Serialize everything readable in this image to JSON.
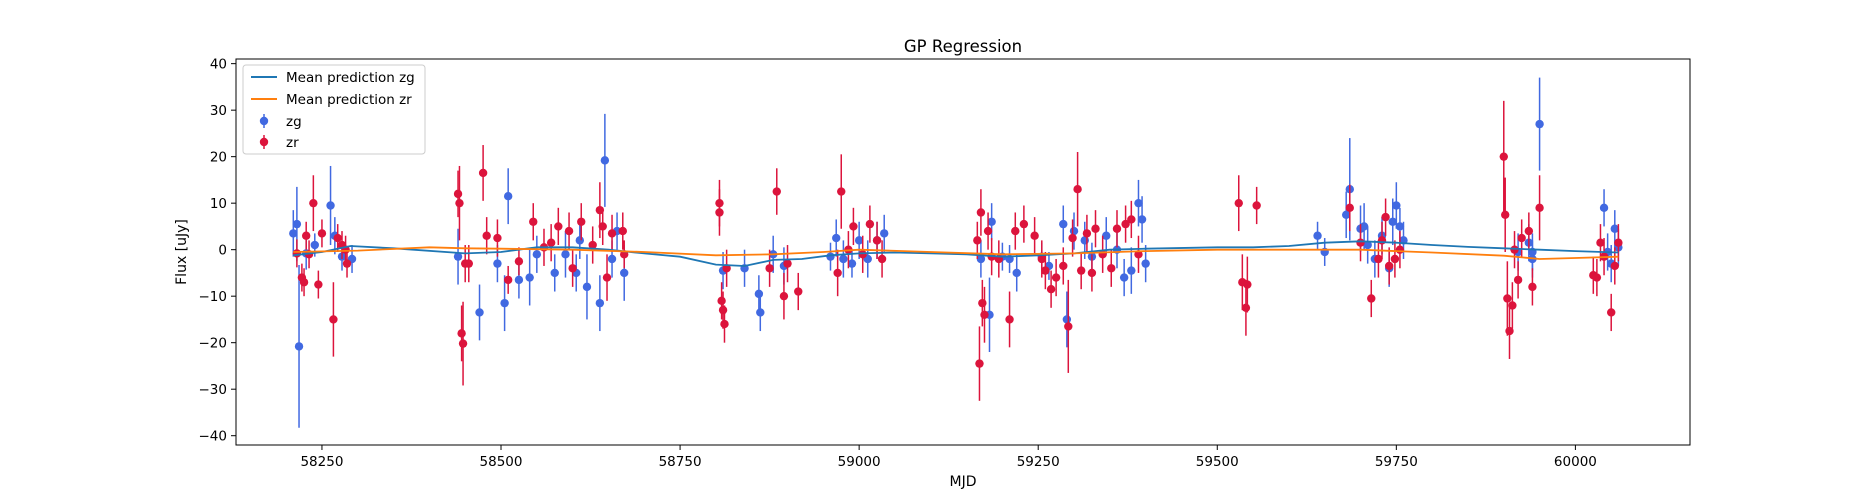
{
  "chart_data": {
    "type": "scatter",
    "title": "GP Regression",
    "xlabel": "MJD",
    "ylabel": "Flux [uJy]",
    "xlim": [
      58130,
      60160
    ],
    "ylim": [
      -42,
      41
    ],
    "xticks": [
      58250,
      58500,
      58750,
      59000,
      59250,
      59500,
      59750,
      60000
    ],
    "yticks": [
      -40,
      -30,
      -20,
      -10,
      0,
      10,
      20,
      30,
      40
    ],
    "grid": false,
    "legend_position": "upper-left",
    "lines": [
      {
        "name": "Mean prediction zg",
        "color": "#1f77b4",
        "x": [
          58210,
          58250,
          58290,
          58350,
          58450,
          58500,
          58550,
          58600,
          58650,
          58700,
          58750,
          58800,
          58840,
          58880,
          58920,
          58960,
          59000,
          59050,
          59100,
          59150,
          59200,
          59250,
          59300,
          59350,
          59400,
          59500,
          59550,
          59600,
          59650,
          59700,
          59750,
          59800,
          59850,
          59900,
          59950,
          60000,
          60060
        ],
        "y": [
          -1.2,
          -0.5,
          0.8,
          0.3,
          -0.8,
          -0.5,
          0.5,
          0.5,
          0.0,
          -0.8,
          -1.5,
          -3.2,
          -3.5,
          -2.2,
          -2.0,
          -1.2,
          -0.8,
          -0.6,
          -0.8,
          -1.0,
          -1.5,
          -1.2,
          -0.8,
          0.0,
          0.2,
          0.5,
          0.5,
          0.8,
          1.5,
          1.8,
          1.5,
          1.0,
          0.6,
          0.3,
          0.0,
          -0.3,
          -0.6
        ]
      },
      {
        "name": "Mean prediction zr",
        "color": "#ff7f0e",
        "x": [
          58210,
          58300,
          58400,
          58450,
          58500,
          58600,
          58700,
          58800,
          58880,
          58950,
          59000,
          59100,
          59200,
          59300,
          59400,
          59500,
          59600,
          59700,
          59800,
          59900,
          59950,
          60000,
          60060
        ],
        "y": [
          -0.5,
          -0.2,
          0.5,
          0.3,
          0.2,
          0.0,
          -0.5,
          -1.2,
          -1.0,
          -0.5,
          0.0,
          -0.5,
          -1.0,
          -0.8,
          -0.3,
          0.0,
          0.0,
          0.0,
          -0.6,
          -1.3,
          -2.0,
          -1.8,
          -1.5
        ]
      }
    ],
    "series": [
      {
        "name": "zg",
        "color": "#4169e1",
        "points": [
          [
            58210,
            3.5,
            5
          ],
          [
            58215,
            5.5,
            8
          ],
          [
            58218,
            -20.8,
            17.5
          ],
          [
            58228,
            -0.8,
            3.5
          ],
          [
            58240,
            1.0,
            2.5
          ],
          [
            58262,
            9.5,
            8.5
          ],
          [
            58268,
            3.0,
            4
          ],
          [
            58278,
            -1.5,
            3
          ],
          [
            58292,
            -2.0,
            3
          ],
          [
            58440,
            -1.5,
            6
          ],
          [
            58470,
            -13.5,
            6
          ],
          [
            58495,
            -3.0,
            4
          ],
          [
            58505,
            -11.5,
            6
          ],
          [
            58510,
            11.5,
            6
          ],
          [
            58525,
            -6.5,
            4
          ],
          [
            58540,
            -6.0,
            6
          ],
          [
            58550,
            -1.0,
            4
          ],
          [
            58575,
            -5.0,
            4
          ],
          [
            58590,
            -1.0,
            5
          ],
          [
            58605,
            -5.0,
            4
          ],
          [
            58610,
            2.0,
            4
          ],
          [
            58620,
            -8.0,
            7
          ],
          [
            58638,
            -11.5,
            6
          ],
          [
            58645,
            19.2,
            10
          ],
          [
            58655,
            -2.0,
            4
          ],
          [
            58662,
            4.0,
            4
          ],
          [
            58672,
            -5.0,
            6
          ],
          [
            58810,
            -4.5,
            4
          ],
          [
            58840,
            -4.0,
            4
          ],
          [
            58860,
            -9.5,
            4
          ],
          [
            58862,
            -13.5,
            4
          ],
          [
            58880,
            -1.0,
            4
          ],
          [
            58895,
            -3.5,
            4
          ],
          [
            58960,
            -1.5,
            3
          ],
          [
            58968,
            2.5,
            4
          ],
          [
            58978,
            -2.0,
            4
          ],
          [
            58990,
            -3.0,
            3
          ],
          [
            59000,
            2.0,
            4
          ],
          [
            59012,
            -2.0,
            4
          ],
          [
            59025,
            2.0,
            4
          ],
          [
            59035,
            3.5,
            4
          ],
          [
            59170,
            -2.0,
            4
          ],
          [
            59182,
            -14.0,
            8
          ],
          [
            59185,
            6.0,
            4
          ],
          [
            59200,
            -1.5,
            3
          ],
          [
            59210,
            -2.0,
            3
          ],
          [
            59220,
            -5.0,
            4
          ],
          [
            59255,
            -1.5,
            3
          ],
          [
            59265,
            -3.5,
            3
          ],
          [
            59285,
            5.5,
            4
          ],
          [
            59290,
            -15.0,
            6
          ],
          [
            59300,
            4.0,
            4
          ],
          [
            59315,
            2.0,
            4
          ],
          [
            59325,
            -1.5,
            3
          ],
          [
            59345,
            3.0,
            4
          ],
          [
            59360,
            0.0,
            4
          ],
          [
            59370,
            -6.0,
            4
          ],
          [
            59380,
            -4.5,
            5
          ],
          [
            59390,
            10.0,
            5
          ],
          [
            59395,
            6.5,
            5
          ],
          [
            59400,
            -3.0,
            4
          ],
          [
            59640,
            3.0,
            3
          ],
          [
            59650,
            -0.5,
            3
          ],
          [
            59680,
            7.5,
            5
          ],
          [
            59685,
            13.0,
            11
          ],
          [
            59700,
            4.5,
            5
          ],
          [
            59705,
            5.0,
            5
          ],
          [
            59710,
            1.0,
            4
          ],
          [
            59720,
            -2.0,
            4
          ],
          [
            59730,
            3.0,
            4
          ],
          [
            59740,
            -4.0,
            4
          ],
          [
            59745,
            6.0,
            5
          ],
          [
            59750,
            9.5,
            5
          ],
          [
            59755,
            5.0,
            4
          ],
          [
            59760,
            2.0,
            4
          ],
          [
            59940,
            -0.5,
            4
          ],
          [
            59950,
            27.0,
            10
          ],
          [
            59940,
            -2.0,
            4
          ],
          [
            59920,
            -0.5,
            4
          ],
          [
            59935,
            1.5,
            4
          ],
          [
            60040,
            9.0,
            4
          ],
          [
            60045,
            -0.5,
            4
          ],
          [
            60050,
            -3.0,
            4
          ],
          [
            60055,
            4.5,
            4
          ],
          [
            60060,
            0.5,
            4
          ]
        ]
      },
      {
        "name": "zr",
        "color": "#dc143c",
        "points": [
          [
            58215,
            -0.8,
            3
          ],
          [
            58222,
            -6.0,
            3
          ],
          [
            58225,
            -7.0,
            3
          ],
          [
            58228,
            3.0,
            3
          ],
          [
            58232,
            -1.0,
            3
          ],
          [
            58238,
            10.0,
            6
          ],
          [
            58245,
            -7.5,
            3
          ],
          [
            58250,
            3.5,
            3
          ],
          [
            58266,
            -15.0,
            8
          ],
          [
            58272,
            2.5,
            3
          ],
          [
            58278,
            1.0,
            3
          ],
          [
            58283,
            0.0,
            3
          ],
          [
            58285,
            -3.0,
            3
          ],
          [
            58440,
            12.0,
            5
          ],
          [
            58442,
            10.0,
            8
          ],
          [
            58445,
            -18.0,
            6
          ],
          [
            58447,
            -20.2,
            9
          ],
          [
            58450,
            -3.0,
            4
          ],
          [
            58455,
            -3.0,
            4
          ],
          [
            58475,
            16.5,
            6
          ],
          [
            58480,
            3.0,
            4
          ],
          [
            58495,
            2.5,
            4
          ],
          [
            58510,
            -6.5,
            3
          ],
          [
            58525,
            -2.5,
            3
          ],
          [
            58545,
            6.0,
            4
          ],
          [
            58560,
            0.5,
            4
          ],
          [
            58570,
            1.5,
            4
          ],
          [
            58580,
            5.0,
            4
          ],
          [
            58595,
            4.0,
            4
          ],
          [
            58600,
            -4.0,
            4
          ],
          [
            58612,
            6.0,
            4
          ],
          [
            58628,
            1.0,
            4
          ],
          [
            58638,
            8.5,
            6
          ],
          [
            58642,
            5.0,
            4
          ],
          [
            58648,
            -6.0,
            5
          ],
          [
            58655,
            3.5,
            4
          ],
          [
            58670,
            4.0,
            4
          ],
          [
            58672,
            -1.0,
            3
          ],
          [
            58805,
            10.0,
            5
          ],
          [
            58805,
            8.0,
            5
          ],
          [
            58808,
            -11.0,
            4
          ],
          [
            58810,
            -13.0,
            4
          ],
          [
            58812,
            -16.0,
            4
          ],
          [
            58815,
            -4.0,
            4
          ],
          [
            58875,
            -4.0,
            4
          ],
          [
            58885,
            12.5,
            5
          ],
          [
            58895,
            -10.0,
            5
          ],
          [
            58900,
            -3.0,
            4
          ],
          [
            58915,
            -9.0,
            4
          ],
          [
            58970,
            -5.0,
            5
          ],
          [
            58975,
            12.5,
            8
          ],
          [
            58985,
            0.0,
            4
          ],
          [
            58992,
            5.0,
            4
          ],
          [
            59005,
            -1.0,
            4
          ],
          [
            59015,
            5.5,
            4
          ],
          [
            59025,
            2.0,
            4
          ],
          [
            59032,
            -2.0,
            4
          ],
          [
            59165,
            2.0,
            4
          ],
          [
            59168,
            -24.5,
            8
          ],
          [
            59170,
            8.0,
            5
          ],
          [
            59172,
            -11.5,
            5
          ],
          [
            59175,
            -14.0,
            6
          ],
          [
            59180,
            4.0,
            4
          ],
          [
            59185,
            -1.5,
            4
          ],
          [
            59195,
            -2.0,
            4
          ],
          [
            59210,
            -15.0,
            6
          ],
          [
            59218,
            4.0,
            4
          ],
          [
            59230,
            5.5,
            4
          ],
          [
            59245,
            3.0,
            4
          ],
          [
            59255,
            -2.0,
            4
          ],
          [
            59260,
            -4.5,
            4
          ],
          [
            59268,
            -8.5,
            4
          ],
          [
            59275,
            -6.0,
            4
          ],
          [
            59285,
            -3.5,
            4
          ],
          [
            59292,
            -16.5,
            10
          ],
          [
            59298,
            2.5,
            4
          ],
          [
            59305,
            13.0,
            8
          ],
          [
            59310,
            -4.5,
            4
          ],
          [
            59318,
            3.5,
            4
          ],
          [
            59325,
            -5.0,
            4
          ],
          [
            59330,
            4.5,
            4
          ],
          [
            59340,
            -1.0,
            4
          ],
          [
            59352,
            -4.0,
            4
          ],
          [
            59360,
            4.5,
            4
          ],
          [
            59372,
            5.5,
            4
          ],
          [
            59380,
            6.5,
            4
          ],
          [
            59390,
            -1.0,
            4
          ],
          [
            59530,
            10.0,
            6
          ],
          [
            59535,
            -7.0,
            6
          ],
          [
            59540,
            -12.5,
            6
          ],
          [
            59542,
            -7.5,
            6
          ],
          [
            59555,
            9.5,
            4
          ],
          [
            59685,
            9.0,
            5
          ],
          [
            59700,
            1.5,
            4
          ],
          [
            59715,
            -10.5,
            4
          ],
          [
            59725,
            -2.0,
            4
          ],
          [
            59730,
            2.0,
            4
          ],
          [
            59735,
            7.0,
            4
          ],
          [
            59740,
            -3.5,
            4
          ],
          [
            59748,
            -2.0,
            4
          ],
          [
            59755,
            0.0,
            4
          ],
          [
            59900,
            20.0,
            12
          ],
          [
            59902,
            7.5,
            8
          ],
          [
            59905,
            -10.5,
            8
          ],
          [
            59908,
            -17.5,
            6
          ],
          [
            59912,
            -12.0,
            5
          ],
          [
            59915,
            0.0,
            4
          ],
          [
            59920,
            -6.5,
            4
          ],
          [
            59925,
            2.5,
            4
          ],
          [
            59935,
            4.0,
            4
          ],
          [
            59940,
            -8.0,
            4
          ],
          [
            59950,
            9.0,
            7
          ],
          [
            60025,
            -5.5,
            4
          ],
          [
            60030,
            -6.0,
            4
          ],
          [
            60035,
            1.5,
            4
          ],
          [
            60040,
            -1.5,
            4
          ],
          [
            60050,
            -13.5,
            4
          ],
          [
            60055,
            -3.5,
            4
          ],
          [
            60060,
            1.5,
            4
          ]
        ]
      }
    ]
  }
}
